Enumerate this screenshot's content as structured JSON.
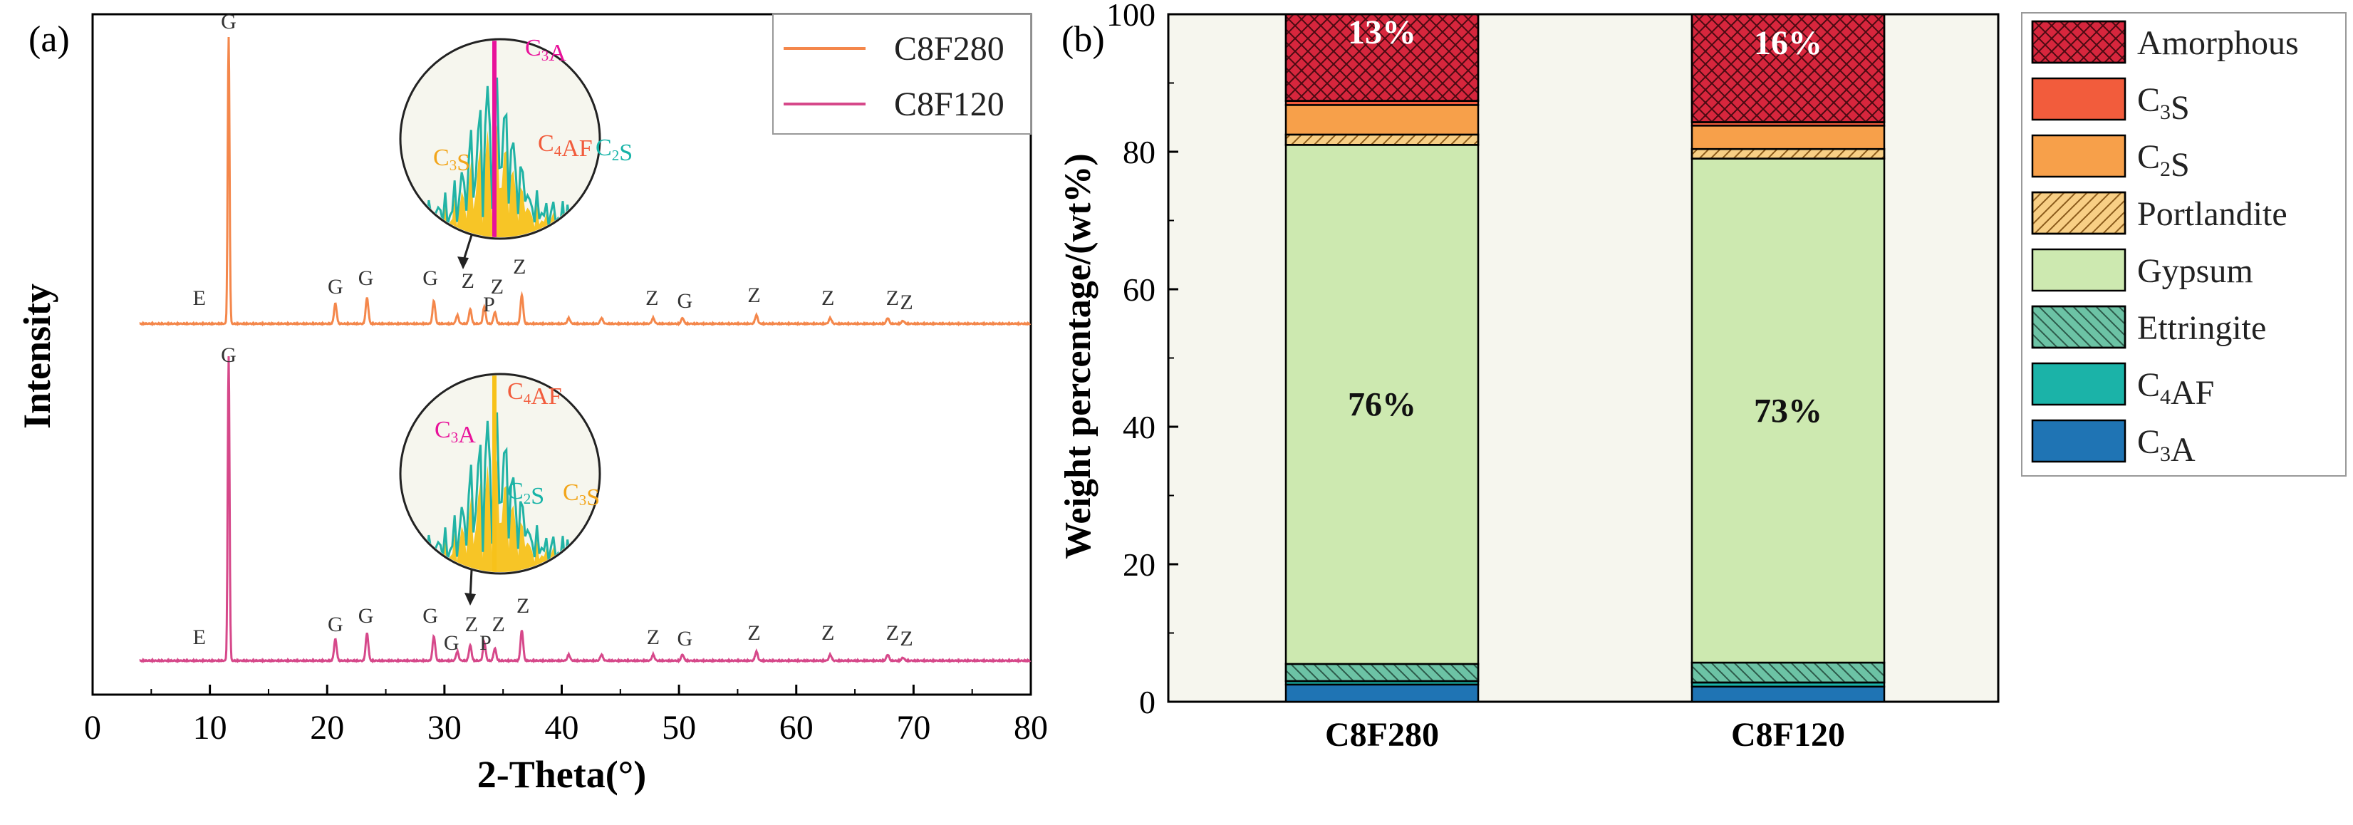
{
  "colors": {
    "c8f280": "#f4874b",
    "c8f120": "#d6488a",
    "amorphous": "#d7263d",
    "c3s": "#f25c3c",
    "c2s": "#f7a04a",
    "portlandite": "#f8cf85",
    "gypsum": "#cde9b0",
    "ettringite": "#6cc3a5",
    "c4af": "#1bb3a8",
    "c3a": "#1f74b4",
    "panel_bg": "#f6f6ee",
    "inset_c3a": "#e8129a",
    "inset_c4af": "#f25c3c",
    "inset_c2s": "#16b3a7",
    "inset_c3s": "#f2a51a",
    "inset_fill": "#f7c21a",
    "inset_teal": "#21b3a5"
  },
  "chart_data": [
    {
      "type": "line",
      "panel_label": "(a)",
      "title": "",
      "xlabel": "2-Theta(°)",
      "ylabel": "Intensity",
      "xlim": [
        0,
        80
      ],
      "x_ticks": [
        0,
        10,
        20,
        30,
        40,
        50,
        60,
        70,
        80
      ],
      "y_ticks_shown": false,
      "legend": [
        "C8F280",
        "C8F120"
      ],
      "legend_position": "top-right",
      "series": [
        {
          "name": "C8F280",
          "peaks": [
            {
              "two_theta": 11.6,
              "rel_intensity": 100
            },
            {
              "two_theta": 20.7,
              "rel_intensity": 7
            },
            {
              "two_theta": 23.4,
              "rel_intensity": 9
            },
            {
              "two_theta": 29.1,
              "rel_intensity": 8
            },
            {
              "two_theta": 31.1,
              "rel_intensity": 3
            },
            {
              "two_theta": 32.2,
              "rel_intensity": 5
            },
            {
              "two_theta": 33.4,
              "rel_intensity": 6
            },
            {
              "two_theta": 34.3,
              "rel_intensity": 4
            },
            {
              "two_theta": 36.6,
              "rel_intensity": 10
            },
            {
              "two_theta": 40.6,
              "rel_intensity": 2
            },
            {
              "two_theta": 43.4,
              "rel_intensity": 2
            },
            {
              "two_theta": 47.8,
              "rel_intensity": 2
            },
            {
              "two_theta": 50.3,
              "rel_intensity": 2
            },
            {
              "two_theta": 56.6,
              "rel_intensity": 3
            },
            {
              "two_theta": 62.9,
              "rel_intensity": 2
            },
            {
              "two_theta": 67.8,
              "rel_intensity": 2
            },
            {
              "two_theta": 69.1,
              "rel_intensity": 1
            }
          ]
        },
        {
          "name": "C8F120",
          "peaks": [
            {
              "two_theta": 11.6,
              "rel_intensity": 100
            },
            {
              "two_theta": 20.7,
              "rel_intensity": 7
            },
            {
              "two_theta": 23.4,
              "rel_intensity": 9
            },
            {
              "two_theta": 29.1,
              "rel_intensity": 8
            },
            {
              "two_theta": 31.1,
              "rel_intensity": 3
            },
            {
              "two_theta": 32.2,
              "rel_intensity": 5
            },
            {
              "two_theta": 33.4,
              "rel_intensity": 6
            },
            {
              "two_theta": 34.3,
              "rel_intensity": 4
            },
            {
              "two_theta": 36.6,
              "rel_intensity": 10
            },
            {
              "two_theta": 40.6,
              "rel_intensity": 2
            },
            {
              "two_theta": 43.4,
              "rel_intensity": 2
            },
            {
              "two_theta": 47.8,
              "rel_intensity": 2
            },
            {
              "two_theta": 50.3,
              "rel_intensity": 2
            },
            {
              "two_theta": 56.6,
              "rel_intensity": 3
            },
            {
              "two_theta": 62.9,
              "rel_intensity": 2
            },
            {
              "two_theta": 67.8,
              "rel_intensity": 2
            },
            {
              "two_theta": 69.1,
              "rel_intensity": 1
            }
          ]
        }
      ],
      "peak_labels": {
        "C8F280": [
          {
            "text": "G",
            "two_theta": 11.6
          },
          {
            "text": "E",
            "two_theta": 9.1
          },
          {
            "text": "G",
            "two_theta": 20.7
          },
          {
            "text": "G",
            "two_theta": 23.3
          },
          {
            "text": "G",
            "two_theta": 28.8
          },
          {
            "text": "Z",
            "two_theta": 32.0
          },
          {
            "text": "Z",
            "two_theta": 34.5
          },
          {
            "text": "P",
            "two_theta": 33.8
          },
          {
            "text": "Z",
            "two_theta": 36.4
          },
          {
            "text": "Z",
            "two_theta": 47.7
          },
          {
            "text": "G",
            "two_theta": 50.5
          },
          {
            "text": "Z",
            "two_theta": 56.4
          },
          {
            "text": "Z",
            "two_theta": 62.7
          },
          {
            "text": "Z",
            "two_theta": 68.2
          },
          {
            "text": "Z",
            "two_theta": 69.4
          }
        ],
        "C8F120": [
          {
            "text": "G",
            "two_theta": 11.6
          },
          {
            "text": "E",
            "two_theta": 9.1
          },
          {
            "text": "G",
            "two_theta": 20.7
          },
          {
            "text": "G",
            "two_theta": 23.3
          },
          {
            "text": "G",
            "two_theta": 28.8
          },
          {
            "text": "G",
            "two_theta": 30.6
          },
          {
            "text": "Z",
            "two_theta": 32.3
          },
          {
            "text": "P",
            "two_theta": 33.5
          },
          {
            "text": "Z",
            "two_theta": 34.6
          },
          {
            "text": "Z",
            "two_theta": 36.7
          },
          {
            "text": "Z",
            "two_theta": 47.8
          },
          {
            "text": "G",
            "two_theta": 50.5
          },
          {
            "text": "Z",
            "two_theta": 56.4
          },
          {
            "text": "Z",
            "two_theta": 62.7
          },
          {
            "text": "Z",
            "two_theta": 68.2
          },
          {
            "text": "Z",
            "two_theta": 69.4
          }
        ]
      },
      "insets": [
        {
          "series": "C8F280",
          "labels": [
            "C3A",
            "C4AF",
            "C3S",
            "C2S"
          ]
        },
        {
          "series": "C8F120",
          "labels": [
            "C4AF",
            "C3A",
            "C2S",
            "C3S"
          ]
        }
      ]
    },
    {
      "type": "bar",
      "stacked": true,
      "panel_label": "(b)",
      "title": "",
      "xlabel": "",
      "ylabel": "Weight percentage/(wt%)",
      "ylim": [
        0,
        100
      ],
      "y_ticks": [
        0,
        20,
        40,
        60,
        80,
        100
      ],
      "categories": [
        "C8F280",
        "C8F120"
      ],
      "series": [
        {
          "name": "C3A",
          "values": [
            2.5,
            2.2
          ]
        },
        {
          "name": "C4AF",
          "values": [
            0.5,
            0.6
          ]
        },
        {
          "name": "Ettringite",
          "values": [
            2.5,
            2.9
          ]
        },
        {
          "name": "Gypsum",
          "values": [
            75.5,
            73.3
          ]
        },
        {
          "name": "Portlandite",
          "values": [
            1.5,
            1.4
          ]
        },
        {
          "name": "C2S",
          "values": [
            4.3,
            3.4
          ]
        },
        {
          "name": "C3S",
          "values": [
            0.6,
            0.5
          ]
        },
        {
          "name": "Amorphous",
          "values": [
            12.6,
            15.7
          ]
        }
      ],
      "data_labels": [
        {
          "category": "C8F280",
          "series": "Amorphous",
          "text": "13%"
        },
        {
          "category": "C8F280",
          "series": "Gypsum",
          "text": "76%"
        },
        {
          "category": "C8F120",
          "series": "Amorphous",
          "text": "16%"
        },
        {
          "category": "C8F120",
          "series": "Gypsum",
          "text": "73%"
        }
      ],
      "legend_position": "right",
      "legend": [
        "Amorphous",
        "C3S",
        "C2S",
        "Portlandite",
        "Gypsum",
        "Ettringite",
        "C4AF",
        "C3A"
      ]
    }
  ]
}
